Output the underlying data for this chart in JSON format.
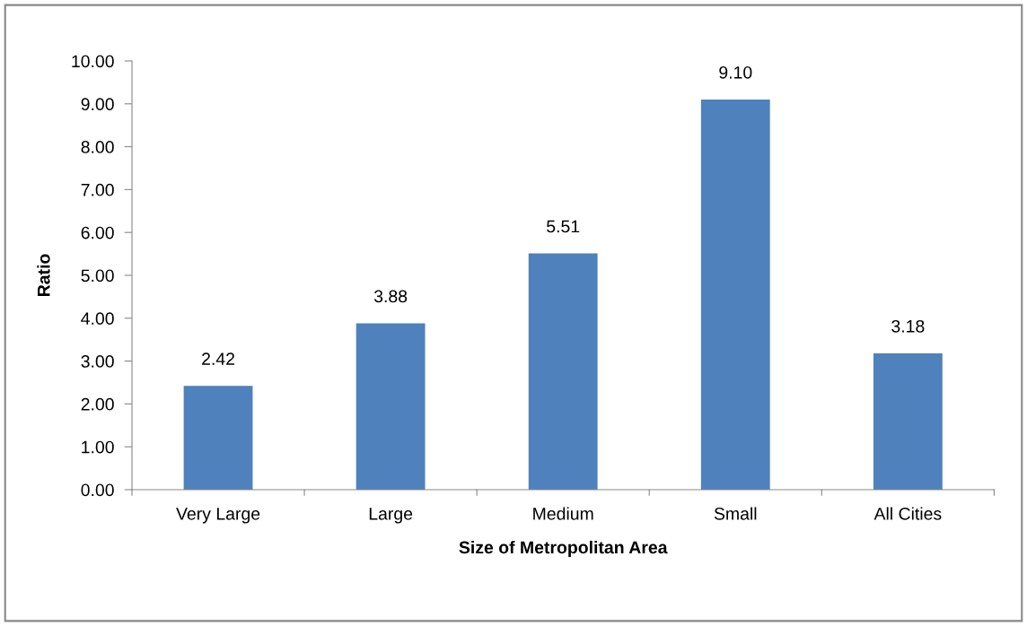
{
  "chart_data": {
    "type": "bar",
    "xlabel": "Size of Metropolitan Area",
    "ylabel": "Ratio",
    "categories": [
      "Very Large",
      "Large",
      "Medium",
      "Small",
      "All Cities"
    ],
    "values": [
      2.42,
      3.88,
      5.51,
      9.1,
      3.18
    ],
    "value_labels": [
      "2.42",
      "3.88",
      "5.51",
      "9.10",
      "3.18"
    ],
    "color": "#4f81bd",
    "ylim": [
      0,
      10
    ],
    "yticks": [
      {
        "value": 0,
        "label": "0.00"
      },
      {
        "value": 1,
        "label": "1.00"
      },
      {
        "value": 2,
        "label": "2.00"
      },
      {
        "value": 3,
        "label": "3.00"
      },
      {
        "value": 4,
        "label": "4.00"
      },
      {
        "value": 5,
        "label": "5.00"
      },
      {
        "value": 6,
        "label": "6.00"
      },
      {
        "value": 7,
        "label": "7.00"
      },
      {
        "value": 8,
        "label": "8.00"
      },
      {
        "value": 9,
        "label": "9.00"
      },
      {
        "value": 10,
        "label": "10.00"
      }
    ],
    "grid": false,
    "legend": false
  }
}
